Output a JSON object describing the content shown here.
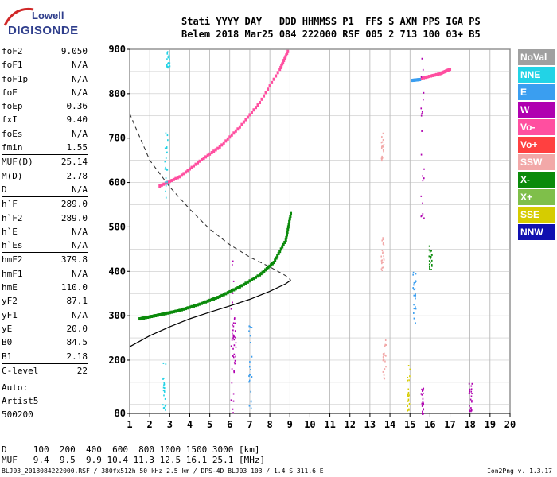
{
  "logo": {
    "line1": "Lowell",
    "line2": "DIGISONDE"
  },
  "header": {
    "line1": "Stati YYYY DAY   DDD HHMMSS P1  FFS S AXN PPS IGA PS",
    "line2": "Belem 2018 Mar25 084 222000 RSF 005 2 713 100 03+ B5"
  },
  "params": [
    {
      "name": "foF2",
      "value": "9.050"
    },
    {
      "name": "foF1",
      "value": "N/A"
    },
    {
      "name": "foF1p",
      "value": "N/A"
    },
    {
      "name": "foE",
      "value": "N/A"
    },
    {
      "name": "foEp",
      "value": "0.36"
    },
    {
      "name": "fxI",
      "value": "9.40"
    },
    {
      "name": "foEs",
      "value": "N/A"
    },
    {
      "name": "fmin",
      "value": "1.55"
    },
    {
      "name": "MUF(D)",
      "value": "25.14"
    },
    {
      "name": "M(D)",
      "value": "2.78"
    },
    {
      "name": "D",
      "value": "N/A"
    },
    {
      "name": "h`F",
      "value": "289.0"
    },
    {
      "name": "h`F2",
      "value": "289.0"
    },
    {
      "name": "h`E",
      "value": "N/A"
    },
    {
      "name": "h`Es",
      "value": "N/A"
    },
    {
      "name": "hmF2",
      "value": "379.8"
    },
    {
      "name": "hmF1",
      "value": "N/A"
    },
    {
      "name": "hmE",
      "value": "110.0"
    },
    {
      "name": "yF2",
      "value": "87.1"
    },
    {
      "name": "yF1",
      "value": "N/A"
    },
    {
      "name": "yE",
      "value": "20.0"
    },
    {
      "name": "B0",
      "value": "84.5"
    },
    {
      "name": "B1",
      "value": "2.18"
    },
    {
      "name": "C-level",
      "value": "22"
    }
  ],
  "auto": {
    "line1": "Auto:",
    "line2": "Artist5",
    "line3": "500200"
  },
  "legend": [
    {
      "label": "NoVal",
      "color": "#a0a0a0"
    },
    {
      "label": "NNE",
      "color": "#22d3e6"
    },
    {
      "label": "E",
      "color": "#3a9ef0"
    },
    {
      "label": "W",
      "color": "#b000b0"
    },
    {
      "label": "Vo-",
      "color": "#ff4fa0"
    },
    {
      "label": "Vo+",
      "color": "#ff4040"
    },
    {
      "label": "SSW",
      "color": "#f2a8a8"
    },
    {
      "label": "X-",
      "color": "#0a8a0a"
    },
    {
      "label": "X+",
      "color": "#7fbf4a"
    },
    {
      "label": "SSE",
      "color": "#d6cc00"
    },
    {
      "label": "NNW",
      "color": "#1010b0"
    }
  ],
  "bottom": {
    "line1": "D     100  200  400  600  800 1000 1500 3000 [km]",
    "line2": "MUF   9.4  9.5  9.9 10.4 11.3 12.5 16.1 25.1 [MHz]"
  },
  "footer": {
    "left": "BLJ03_2018084222000.RSF / 380fx512h 50 kHz 2.5 km / DPS-4D BLJ03 103 / 1.4 S 311.6 E",
    "right": "Ion2Png v. 1.3.17"
  },
  "chart_data": {
    "type": "scatter",
    "x_ticks": [
      1,
      2,
      3,
      4,
      5,
      6,
      7,
      8,
      9,
      10,
      11,
      12,
      13,
      14,
      15,
      16,
      17,
      18,
      19,
      20
    ],
    "y_ticks": [
      80,
      200,
      300,
      400,
      500,
      600,
      700,
      800,
      900
    ],
    "xlim": [
      1,
      20
    ],
    "ylim": [
      80,
      900
    ],
    "grid": true,
    "legend_position": "right",
    "series": [
      {
        "name": "X-",
        "color": "#0a8a0a",
        "points": [
          [
            1.5,
            293
          ],
          [
            2.5,
            302
          ],
          [
            3.5,
            312
          ],
          [
            4.5,
            326
          ],
          [
            5.5,
            343
          ],
          [
            6.5,
            365
          ],
          [
            7.5,
            392
          ],
          [
            8.2,
            420
          ],
          [
            8.8,
            470
          ],
          [
            9.05,
            530
          ]
        ]
      },
      {
        "name": "Vo-",
        "color": "#ff4fa0",
        "points": [
          [
            2.5,
            592
          ],
          [
            3.5,
            613
          ],
          [
            4.5,
            648
          ],
          [
            5.5,
            680
          ],
          [
            6.5,
            725
          ],
          [
            7.5,
            780
          ],
          [
            8.5,
            855
          ],
          [
            8.9,
            895
          ]
        ]
      },
      {
        "name": "E",
        "color": "#3a9ef0",
        "points": [
          [
            15.1,
            830
          ],
          [
            15.5,
            832
          ]
        ]
      },
      {
        "name": "Vo-",
        "color": "#ff4fa0",
        "points": [
          [
            15.6,
            835
          ],
          [
            16.5,
            845
          ],
          [
            17.0,
            855
          ]
        ]
      }
    ]
  }
}
